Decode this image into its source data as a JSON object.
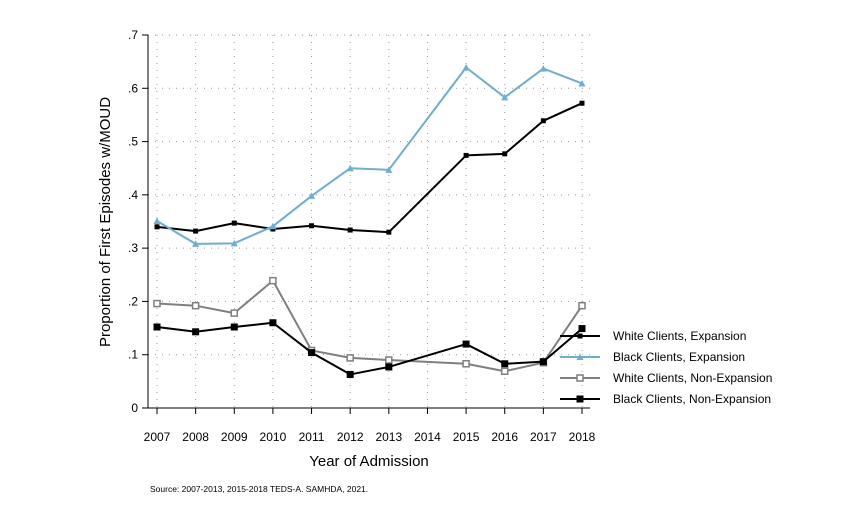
{
  "chart_data": {
    "type": "line",
    "xlabel": "Year of Admission",
    "ylabel": "Proportion of First Episodes w/MOUD",
    "x": [
      2007,
      2008,
      2009,
      2010,
      2011,
      2012,
      2013,
      2014,
      2015,
      2016,
      2017,
      2018
    ],
    "x_tick_labels": [
      "2007",
      "2008",
      "2009",
      "2010",
      "2011",
      "2012",
      "2013",
      "2014",
      "2015",
      "2016",
      "2017",
      "2018"
    ],
    "y_ticks": [
      0,
      0.1,
      0.2,
      0.3,
      0.4,
      0.5,
      0.6,
      0.7
    ],
    "y_tick_labels": [
      "0",
      ".1",
      ".2",
      ".3",
      ".4",
      ".5",
      ".6",
      ".7"
    ],
    "xlim": [
      2007,
      2018
    ],
    "ylim": [
      0,
      0.7
    ],
    "grid": "dotted",
    "legend_position": "right",
    "series": [
      {
        "name": "White Clients, Expansion",
        "color": "#000000",
        "marker": "small-filled-square",
        "x": [
          2007,
          2008,
          2009,
          2010,
          2011,
          2012,
          2013,
          2015,
          2016,
          2017,
          2018
        ],
        "values": [
          0.34,
          0.332,
          0.347,
          0.336,
          0.342,
          0.334,
          0.33,
          0.474,
          0.477,
          0.539,
          0.572
        ]
      },
      {
        "name": "Black Clients, Expansion",
        "color": "#6baed6",
        "marker": "small-filled-triangle",
        "x": [
          2007,
          2008,
          2009,
          2010,
          2011,
          2012,
          2013,
          2015,
          2016,
          2017,
          2018
        ],
        "values": [
          0.351,
          0.308,
          0.309,
          0.341,
          0.398,
          0.45,
          0.447,
          0.639,
          0.583,
          0.637,
          0.609
        ]
      },
      {
        "name": "White Clients, Non-Expansion",
        "color": "#7f7f7f",
        "marker": "hollow-square",
        "x": [
          2007,
          2008,
          2009,
          2010,
          2011,
          2012,
          2013,
          2015,
          2016,
          2017,
          2018
        ],
        "values": [
          0.196,
          0.192,
          0.178,
          0.239,
          0.108,
          0.094,
          0.09,
          0.083,
          0.069,
          0.085,
          0.192
        ]
      },
      {
        "name": "Black Clients, Non-Expansion",
        "color": "#000000",
        "marker": "filled-square",
        "x": [
          2007,
          2008,
          2009,
          2010,
          2011,
          2012,
          2013,
          2015,
          2016,
          2017,
          2018
        ],
        "values": [
          0.152,
          0.143,
          0.152,
          0.16,
          0.104,
          0.063,
          0.077,
          0.12,
          0.083,
          0.087,
          0.149
        ]
      }
    ],
    "annotation": "Source: 2007-2013, 2015-2018 TEDS-A. SAMHDA, 2021."
  }
}
